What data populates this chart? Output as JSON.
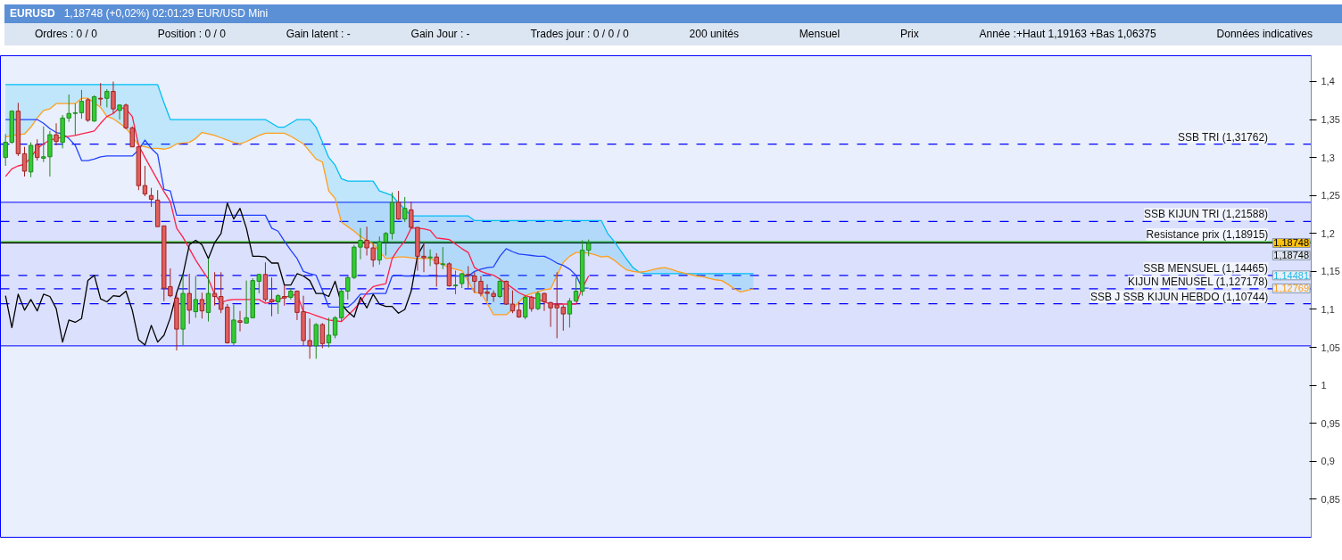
{
  "chart_data": {
    "type": "candlestick",
    "title": "EURUSD",
    "subtitle": "1,18748 (+0,02%) 02:01:29 EUR/USD Mini",
    "categories": [
      null,
      null,
      null,
      null,
      null,
      null,
      null,
      null,
      null,
      null,
      null,
      null,
      null,
      null,
      null,
      null,
      null,
      null,
      null,
      null,
      null,
      null,
      null,
      null,
      null,
      null,
      null,
      null,
      null,
      null,
      null,
      null,
      null,
      null,
      null,
      null,
      null,
      null,
      null,
      null,
      null,
      null,
      null,
      null,
      null,
      null,
      null,
      null,
      null,
      null,
      null,
      null,
      null,
      null,
      null,
      null,
      null,
      null,
      null,
      null,
      null,
      null,
      null,
      null,
      null,
      null,
      null,
      null,
      null,
      null,
      null,
      null,
      null,
      null,
      null,
      null,
      null,
      null,
      null,
      null,
      null,
      null,
      null,
      null,
      null,
      null,
      null,
      null,
      null,
      null,
      null,
      null,
      null,
      null,
      null,
      null,
      null,
      null,
      null,
      null,
      null,
      null,
      null,
      null,
      null,
      null,
      null,
      null,
      null,
      null,
      null,
      null,
      null,
      null,
      null,
      null,
      null,
      null,
      null,
      null,
      null,
      null,
      null,
      null,
      null,
      null,
      null,
      null,
      null,
      null,
      null,
      null,
      null,
      null,
      null,
      null,
      null,
      null,
      null,
      null,
      null,
      null,
      null,
      null,
      null,
      null,
      null,
      null,
      null,
      null,
      null,
      null,
      null,
      null,
      null,
      null,
      null,
      null,
      null,
      null,
      null,
      null,
      null,
      null,
      null,
      null,
      null,
      null,
      null,
      null,
      null,
      null,
      null,
      null,
      null,
      null,
      null,
      null,
      null,
      null,
      null,
      null,
      null,
      null,
      null,
      null,
      null,
      null,
      null,
      null,
      null,
      null,
      null,
      null,
      null,
      null,
      null,
      null,
      null,
      null
    ],
    "ohlc": [
      [
        1.3,
        1.331,
        1.289,
        1.32
      ],
      [
        1.32,
        1.362,
        1.318,
        1.361
      ],
      [
        1.361,
        1.372,
        1.302,
        1.305
      ],
      [
        1.305,
        1.314,
        1.275,
        1.282
      ],
      [
        1.281,
        1.32,
        1.274,
        1.316
      ],
      [
        1.317,
        1.324,
        1.296,
        1.3
      ],
      [
        1.299,
        1.341,
        1.294,
        1.301
      ],
      [
        1.301,
        1.335,
        1.275,
        1.33
      ],
      [
        1.33,
        1.345,
        1.316,
        1.321
      ],
      [
        1.32,
        1.356,
        1.312,
        1.352
      ],
      [
        1.352,
        1.383,
        1.347,
        1.358
      ],
      [
        1.358,
        1.371,
        1.329,
        1.359
      ],
      [
        1.359,
        1.389,
        1.351,
        1.374
      ],
      [
        1.376,
        1.378,
        1.347,
        1.349
      ],
      [
        1.348,
        1.382,
        1.347,
        1.38
      ],
      [
        1.378,
        1.398,
        1.368,
        1.377
      ],
      [
        1.378,
        1.39,
        1.366,
        1.387
      ],
      [
        1.387,
        1.4,
        1.358,
        1.364
      ],
      [
        1.362,
        1.37,
        1.35,
        1.369
      ],
      [
        1.369,
        1.371,
        1.337,
        1.339
      ],
      [
        1.339,
        1.341,
        1.314,
        1.314
      ],
      [
        1.314,
        1.315,
        1.257,
        1.263
      ],
      [
        1.263,
        1.289,
        1.249,
        1.252
      ],
      [
        1.25,
        1.26,
        1.235,
        1.245
      ],
      [
        1.244,
        1.257,
        1.209,
        1.209
      ],
      [
        1.21,
        1.21,
        1.111,
        1.128
      ],
      [
        1.13,
        1.154,
        1.116,
        1.118
      ],
      [
        1.115,
        1.12,
        1.046,
        1.074
      ],
      [
        1.074,
        1.146,
        1.053,
        1.121
      ],
      [
        1.121,
        1.147,
        1.081,
        1.099
      ],
      [
        1.097,
        1.144,
        1.089,
        1.113
      ],
      [
        1.113,
        1.122,
        1.088,
        1.098
      ],
      [
        1.096,
        1.167,
        1.084,
        1.121
      ],
      [
        1.121,
        1.149,
        1.105,
        1.117
      ],
      [
        1.117,
        1.149,
        1.095,
        1.1
      ],
      [
        1.103,
        1.107,
        1.055,
        1.056
      ],
      [
        1.056,
        1.106,
        1.053,
        1.086
      ],
      [
        1.085,
        1.098,
        1.071,
        1.083
      ],
      [
        1.082,
        1.138,
        1.082,
        1.089
      ],
      [
        1.089,
        1.141,
        1.089,
        1.138
      ],
      [
        1.137,
        1.147,
        1.121,
        1.146
      ],
      [
        1.146,
        1.162,
        1.11,
        1.113
      ],
      [
        1.113,
        1.142,
        1.091,
        1.11
      ],
      [
        1.11,
        1.12,
        1.094,
        1.118
      ],
      [
        1.117,
        1.132,
        1.105,
        1.115
      ],
      [
        1.116,
        1.128,
        1.113,
        1.124
      ],
      [
        1.124,
        1.125,
        1.086,
        1.096
      ],
      [
        1.097,
        1.118,
        1.052,
        1.059
      ],
      [
        1.059,
        1.088,
        1.035,
        1.052
      ],
      [
        1.052,
        1.082,
        1.035,
        1.08
      ],
      [
        1.08,
        1.082,
        1.049,
        1.055
      ],
      [
        1.056,
        1.089,
        1.05,
        1.066
      ],
      [
        1.066,
        1.091,
        1.062,
        1.089
      ],
      [
        1.089,
        1.127,
        1.084,
        1.124
      ],
      [
        1.124,
        1.144,
        1.113,
        1.142
      ],
      [
        1.142,
        1.185,
        1.14,
        1.182
      ],
      [
        1.182,
        1.207,
        1.166,
        1.191
      ],
      [
        1.191,
        1.209,
        1.171,
        1.181
      ],
      [
        1.181,
        1.186,
        1.156,
        1.165
      ],
      [
        1.165,
        1.196,
        1.159,
        1.189
      ],
      [
        1.189,
        1.202,
        1.171,
        1.2
      ],
      [
        1.2,
        1.254,
        1.192,
        1.241
      ],
      [
        1.241,
        1.256,
        1.218,
        1.219
      ],
      [
        1.219,
        1.248,
        1.215,
        1.233
      ],
      [
        1.231,
        1.242,
        1.206,
        1.208
      ],
      [
        1.208,
        1.208,
        1.151,
        1.17
      ],
      [
        1.17,
        1.188,
        1.149,
        1.168
      ],
      [
        1.168,
        1.179,
        1.157,
        1.169
      ],
      [
        1.169,
        1.174,
        1.13,
        1.16
      ],
      [
        1.159,
        1.182,
        1.153,
        1.16
      ],
      [
        1.16,
        1.162,
        1.13,
        1.131
      ],
      [
        1.131,
        1.151,
        1.12,
        1.132
      ],
      [
        1.134,
        1.148,
        1.128,
        1.147
      ],
      [
        1.146,
        1.157,
        1.128,
        1.145
      ],
      [
        1.144,
        1.149,
        1.122,
        1.137
      ],
      [
        1.137,
        1.144,
        1.117,
        1.121
      ],
      [
        1.123,
        1.133,
        1.111,
        1.121
      ],
      [
        1.121,
        1.125,
        1.11,
        1.117
      ],
      [
        1.117,
        1.141,
        1.115,
        1.137
      ],
      [
        1.137,
        1.138,
        1.106,
        1.107
      ],
      [
        1.107,
        1.125,
        1.095,
        1.098
      ],
      [
        1.099,
        1.11,
        1.089,
        1.09
      ],
      [
        1.09,
        1.118,
        1.087,
        1.116
      ],
      [
        1.116,
        1.118,
        1.097,
        1.101
      ],
      [
        1.101,
        1.124,
        1.099,
        1.121
      ],
      [
        1.121,
        1.122,
        1.098,
        1.11
      ],
      [
        1.109,
        1.11,
        1.077,
        1.102
      ],
      [
        1.106,
        1.149,
        1.062,
        1.102
      ],
      [
        1.103,
        1.106,
        1.072,
        1.094
      ],
      [
        1.094,
        1.115,
        1.076,
        1.111
      ],
      [
        1.111,
        1.142,
        1.11,
        1.124
      ],
      [
        1.124,
        1.191,
        1.118,
        1.178
      ],
      [
        1.178,
        1.192,
        1.17,
        1.187
      ],
      null,
      null,
      null,
      null,
      null,
      null,
      null,
      null,
      null,
      null,
      null,
      null,
      null,
      null,
      null,
      null,
      null,
      null,
      null,
      null,
      null,
      null,
      null,
      null,
      null,
      null,
      null,
      null,
      null,
      null,
      null,
      null,
      null,
      null,
      null,
      null,
      null,
      null,
      null,
      null,
      null,
      null,
      null,
      null,
      null,
      null,
      null,
      null,
      null,
      null,
      null,
      null,
      null,
      null,
      null,
      null,
      null,
      null,
      null,
      null,
      null,
      null,
      null,
      null,
      null,
      null,
      null,
      null,
      null,
      null,
      null,
      null,
      null,
      null,
      null,
      null,
      null,
      null,
      null,
      null,
      null,
      null,
      null,
      null,
      null,
      null,
      null,
      null,
      null,
      null,
      null,
      null,
      null,
      null,
      null,
      null,
      null,
      null,
      null,
      null,
      null,
      null,
      null,
      null,
      null,
      null,
      null
    ],
    "series": [
      {
        "type": "line",
        "color": "#00bff3",
        "values": [
          1.396,
          1.396,
          1.396,
          1.396,
          1.396,
          1.396,
          1.396,
          1.396,
          1.396,
          1.396,
          1.396,
          1.396,
          1.396,
          1.396,
          1.396,
          1.396,
          1.396,
          1.396,
          1.396,
          1.396,
          1.396,
          1.396,
          1.396,
          1.396,
          1.396,
          1.372,
          1.35,
          1.35,
          1.35,
          1.35,
          1.35,
          1.35,
          1.35,
          1.35,
          1.35,
          1.35,
          1.35,
          1.35,
          1.35,
          1.35,
          1.35,
          1.35,
          1.345,
          1.34,
          1.34,
          1.345,
          1.35,
          1.35,
          1.35,
          1.34,
          1.32,
          1.3,
          1.29,
          1.272,
          1.269,
          1.269,
          1.269,
          1.269,
          1.269,
          1.256,
          1.253,
          1.25,
          1.24,
          1.232,
          1.223,
          1.223,
          1.223,
          1.223,
          1.223,
          1.223,
          1.223,
          1.223,
          1.223,
          1.223,
          1.217,
          1.217,
          1.217,
          1.217,
          1.217,
          1.217,
          1.217,
          1.217,
          1.217,
          1.217,
          1.217,
          1.217,
          1.217,
          1.217,
          1.217,
          1.217,
          1.217,
          1.217,
          1.217,
          1.217,
          1.217,
          1.2,
          1.19,
          1.178,
          1.166,
          1.155,
          1.149,
          1.147,
          1.147,
          1.147,
          1.147,
          1.147,
          1.147,
          1.147,
          1.147,
          1.147,
          1.147,
          1.147,
          1.147,
          1.147,
          1.147,
          1.147,
          1.147,
          1.147,
          1.147,
          null,
          null,
          null,
          null,
          null,
          null,
          null,
          null,
          null,
          null,
          null,
          null,
          null,
          null,
          null,
          null,
          null,
          null,
          null,
          null,
          null,
          null,
          null,
          null,
          null,
          null,
          null,
          null,
          null,
          null,
          null,
          null,
          null,
          null,
          null,
          null,
          null,
          null,
          null,
          null,
          null,
          null,
          null,
          null,
          null,
          null,
          null,
          null,
          null,
          null,
          null,
          null,
          null,
          null,
          null,
          null,
          null,
          null,
          null,
          null,
          null,
          null,
          null,
          null,
          null,
          null,
          null,
          null,
          null,
          null,
          null,
          null,
          null,
          null,
          null,
          null,
          null,
          null,
          null,
          null,
          null
        ],
        "lower": [
          1.327,
          1.329,
          1.33,
          1.331,
          1.34,
          1.352,
          1.362,
          1.364,
          1.371,
          1.371,
          1.371,
          1.371,
          1.378,
          1.378,
          1.372,
          1.366,
          1.354,
          1.351,
          1.345,
          1.339,
          1.328,
          1.316,
          1.314,
          1.312,
          1.312,
          1.311,
          1.313,
          1.318,
          1.319,
          1.32,
          1.325,
          1.333,
          1.331,
          1.329,
          1.326,
          1.323,
          1.32,
          1.318,
          1.321,
          1.325,
          1.329,
          1.332,
          1.332,
          1.332,
          1.332,
          1.328,
          1.323,
          1.318,
          1.308,
          1.298,
          1.294,
          1.256,
          1.246,
          1.215,
          1.209,
          1.203,
          1.196,
          1.191,
          1.186,
          1.176,
          1.167,
          1.168,
          1.169,
          1.169,
          1.168,
          1.167,
          1.167,
          1.167,
          1.163,
          1.159,
          1.155,
          1.153,
          1.151,
          1.137,
          1.122,
          1.122,
          1.108,
          1.093,
          1.093,
          1.093,
          1.1,
          1.11,
          1.118,
          1.121,
          1.123,
          1.126,
          1.127,
          1.145,
          1.162,
          1.17,
          1.175,
          1.175,
          1.174,
          1.172,
          1.169,
          1.17,
          1.165,
          1.158,
          1.152,
          1.15,
          1.149,
          1.15,
          1.152,
          1.154,
          1.155,
          1.153,
          1.15,
          1.148,
          1.146,
          1.144,
          1.143,
          1.141,
          1.139,
          1.138,
          1.133,
          1.127,
          1.123,
          1.125,
          1.127,
          null,
          null,
          null,
          null,
          null,
          null,
          null,
          null,
          null,
          null,
          null,
          null,
          null,
          null,
          null,
          null,
          null,
          null,
          null,
          null,
          null,
          null,
          null,
          null,
          null,
          null,
          null,
          null,
          null,
          null,
          null,
          null,
          null,
          null,
          null,
          null,
          null,
          null,
          null,
          null,
          null,
          null,
          null,
          null,
          null,
          null,
          null,
          null,
          null,
          null,
          null,
          null,
          null,
          null,
          null,
          null,
          null,
          null,
          null,
          null,
          null,
          null,
          null,
          null,
          null,
          null,
          null,
          null,
          null,
          null,
          null,
          null,
          null,
          null,
          null,
          null,
          null,
          null,
          null,
          null,
          null
        ],
        "upper": [
          1.396,
          1.396,
          1.396,
          1.396,
          1.396,
          1.396,
          1.396,
          1.396,
          1.396,
          1.396,
          1.396,
          1.396,
          1.396,
          1.396,
          1.396,
          1.396,
          1.396,
          1.396,
          1.396,
          1.396,
          1.396,
          1.396,
          1.396,
          1.396,
          1.396,
          1.372,
          1.35,
          1.35,
          1.35,
          1.35,
          1.35,
          1.35,
          1.35,
          1.35,
          1.35,
          1.35,
          1.35,
          1.35,
          1.35,
          1.35,
          1.35,
          1.35,
          1.345,
          1.34,
          1.34,
          1.345,
          1.35,
          1.35,
          1.35,
          1.34,
          1.32,
          1.3,
          1.29,
          1.272,
          1.269,
          1.269,
          1.269,
          1.269,
          1.269,
          1.256,
          1.253,
          1.25,
          1.24,
          1.232,
          1.223,
          1.223,
          1.223,
          1.223,
          1.223,
          1.223,
          1.223,
          1.223,
          1.223,
          1.223,
          1.217,
          1.217,
          1.217,
          1.217,
          1.217,
          1.217,
          1.217,
          1.217,
          1.217,
          1.217,
          1.217,
          1.217,
          1.217,
          1.217,
          1.217,
          1.217,
          1.217,
          1.217,
          1.217,
          1.217,
          1.217,
          1.2,
          1.19,
          1.178,
          1.166,
          1.155,
          1.149,
          1.147,
          1.147,
          1.147,
          1.147,
          1.147,
          1.147,
          1.147,
          1.147,
          1.147,
          1.147,
          1.147,
          1.147,
          1.147,
          1.147,
          1.147,
          1.147,
          1.147,
          1.147,
          null,
          null,
          null,
          null,
          null,
          null,
          null,
          null,
          null,
          null,
          null,
          null,
          null,
          null,
          null,
          null,
          null,
          null,
          null,
          null,
          null,
          null,
          null,
          null,
          null,
          null,
          null,
          null,
          null,
          null,
          null,
          null,
          null,
          null,
          null,
          null,
          null,
          null,
          null,
          null,
          null,
          null,
          null,
          null,
          null,
          null,
          null,
          null,
          null,
          null,
          null,
          null,
          null,
          null,
          null,
          null,
          null,
          null,
          null,
          null,
          null,
          null,
          null,
          null,
          null,
          null,
          null,
          null,
          null,
          null,
          null,
          null,
          null,
          null,
          null,
          null,
          null,
          null,
          null,
          null,
          null
        ]
      },
      {
        "type": "line",
        "color": "#ff9f1c",
        "values": [
          1.327,
          1.329,
          1.33,
          1.331,
          1.34,
          1.352,
          1.362,
          1.364,
          1.371,
          1.371,
          1.371,
          1.371,
          1.378,
          1.378,
          1.372,
          1.366,
          1.354,
          1.351,
          1.345,
          1.339,
          1.328,
          1.316,
          1.314,
          1.312,
          1.312,
          1.311,
          1.313,
          1.318,
          1.319,
          1.32,
          1.325,
          1.333,
          1.331,
          1.329,
          1.326,
          1.323,
          1.32,
          1.318,
          1.321,
          1.325,
          1.329,
          1.332,
          1.332,
          1.332,
          1.332,
          1.328,
          1.323,
          1.318,
          1.308,
          1.298,
          1.294,
          1.256,
          1.246,
          1.215,
          1.209,
          1.203,
          1.196,
          1.191,
          1.186,
          1.176,
          1.167,
          1.168,
          1.169,
          1.169,
          1.168,
          1.167,
          1.167,
          1.167,
          1.163,
          1.159,
          1.155,
          1.153,
          1.151,
          1.137,
          1.122,
          1.122,
          1.108,
          1.093,
          1.093,
          1.093,
          1.1,
          1.11,
          1.118,
          1.121,
          1.123,
          1.126,
          1.127,
          1.145,
          1.162,
          1.17,
          1.175,
          1.175,
          1.174,
          1.172,
          1.169,
          1.17,
          1.165,
          1.158,
          1.152,
          1.15,
          1.149,
          1.15,
          1.152,
          1.154,
          1.155,
          1.153,
          1.15,
          1.148,
          1.146,
          1.144,
          1.143,
          1.141,
          1.139,
          1.138,
          1.133,
          1.127,
          1.123,
          1.125,
          1.127,
          null,
          null,
          null,
          null,
          null,
          null,
          null,
          null,
          null,
          null,
          null,
          null,
          null,
          null,
          null,
          null,
          null,
          null,
          null,
          null,
          null,
          null,
          null,
          null,
          null,
          null,
          null,
          null,
          null,
          null,
          null,
          null,
          null,
          null,
          null,
          null,
          null,
          null,
          null,
          null,
          null,
          null,
          null,
          null,
          null,
          null,
          null,
          null,
          null,
          null,
          null,
          null,
          null,
          null,
          null,
          null,
          null,
          null,
          null,
          null,
          null,
          null,
          null,
          null,
          null,
          null,
          null,
          null,
          null,
          null,
          null,
          null,
          null,
          null,
          null,
          null,
          null,
          null,
          null,
          null,
          null
        ]
      },
      {
        "type": "line",
        "color": "#2040ff",
        "values": [
          1.35,
          1.35,
          1.35,
          1.35,
          1.35,
          1.35,
          1.345,
          1.338,
          1.333,
          1.331,
          1.325,
          1.316,
          1.296,
          1.296,
          1.298,
          1.301,
          1.302,
          1.302,
          1.302,
          1.302,
          1.302,
          1.31,
          1.323,
          1.312,
          1.304,
          1.258,
          1.256,
          1.224,
          1.224,
          1.224,
          1.224,
          1.224,
          1.224,
          1.224,
          1.224,
          1.224,
          1.224,
          1.224,
          1.224,
          1.224,
          1.224,
          1.224,
          1.207,
          1.203,
          1.19,
          1.178,
          1.167,
          1.15,
          1.147,
          1.145,
          1.125,
          1.103,
          1.103,
          1.103,
          1.103,
          1.11,
          1.12,
          1.12,
          1.121,
          1.121,
          1.121,
          1.144,
          1.145,
          1.144,
          1.144,
          1.144,
          1.144,
          1.144,
          1.144,
          1.144,
          1.144,
          1.144,
          1.144,
          1.144,
          1.15,
          1.153,
          1.155,
          1.156,
          1.17,
          1.18,
          1.176,
          1.173,
          1.172,
          1.171,
          1.17,
          1.17,
          1.166,
          1.161,
          1.158,
          1.153,
          1.145,
          1.128,
          1.128,
          null,
          null,
          null,
          null,
          null,
          null,
          null,
          null,
          null,
          null,
          null,
          null,
          null,
          null,
          null,
          null,
          null,
          null,
          null,
          null,
          null,
          null,
          null,
          null,
          null,
          null,
          null,
          null,
          null,
          null,
          null,
          null,
          null,
          null,
          null,
          null,
          null,
          null,
          null,
          null,
          null,
          null,
          null,
          null,
          null,
          null,
          null,
          null,
          null,
          null,
          null,
          null,
          null,
          null,
          null,
          null,
          null,
          null,
          null,
          null,
          null,
          null,
          null,
          null,
          null,
          null,
          null,
          null,
          null,
          null,
          null,
          null,
          null,
          null,
          null,
          null,
          null,
          null,
          null,
          null,
          null,
          null,
          null,
          null,
          null,
          null,
          null,
          null,
          null,
          null,
          null,
          null,
          null,
          null,
          null,
          null,
          null,
          null,
          null,
          null,
          null,
          null,
          null,
          null,
          null,
          null,
          null
        ]
      },
      {
        "type": "line",
        "color": "#ff1f4b",
        "values": [
          1.275,
          1.285,
          1.289,
          1.291,
          1.3,
          1.312,
          1.318,
          1.323,
          1.325,
          1.327,
          1.328,
          1.329,
          1.331,
          1.333,
          1.335,
          1.345,
          1.354,
          1.358,
          1.366,
          1.364,
          1.354,
          1.316,
          1.3,
          1.285,
          1.27,
          1.255,
          1.242,
          1.207,
          1.195,
          1.18,
          1.165,
          1.152,
          1.14,
          1.12,
          1.109,
          1.112,
          1.113,
          1.113,
          1.113,
          1.113,
          1.113,
          1.108,
          1.11,
          1.113,
          1.116,
          1.118,
          1.12,
          1.097,
          1.095,
          1.092,
          1.089,
          1.086,
          1.085,
          1.084,
          1.092,
          1.1,
          1.11,
          1.122,
          1.13,
          1.132,
          1.134,
          1.167,
          1.18,
          1.19,
          1.207,
          1.207,
          1.206,
          1.204,
          1.194,
          1.193,
          1.192,
          1.186,
          1.18,
          1.175,
          1.155,
          1.15,
          1.147,
          1.145,
          1.14,
          1.134,
          1.128,
          1.122,
          1.118,
          1.116,
          1.114,
          1.11,
          1.107,
          1.107,
          1.107,
          1.107,
          1.107,
          1.128,
          1.144,
          null,
          null,
          null,
          null,
          null,
          null,
          null,
          null,
          null,
          null,
          null,
          null,
          null,
          null,
          null,
          null,
          null,
          null,
          null,
          null,
          null,
          null,
          null,
          null,
          null,
          null,
          null,
          null,
          null,
          null,
          null,
          null,
          null,
          null,
          null,
          null,
          null,
          null,
          null,
          null,
          null,
          null,
          null,
          null,
          null,
          null,
          null,
          null,
          null,
          null,
          null,
          null,
          null,
          null,
          null,
          null,
          null,
          null,
          null,
          null,
          null,
          null,
          null,
          null,
          null,
          null,
          null,
          null,
          null,
          null,
          null,
          null,
          null,
          null,
          null,
          null,
          null,
          null,
          null,
          null,
          null,
          null,
          null,
          null,
          null,
          null,
          null,
          null,
          null,
          null,
          null,
          null,
          null,
          null,
          null,
          null,
          null,
          null,
          null,
          null,
          null,
          null,
          null,
          null,
          null,
          null,
          null
        ]
      },
      {
        "type": "line",
        "color": "#000000",
        "values": [
          1.118,
          1.076,
          1.12,
          1.099,
          1.113,
          1.098,
          1.12,
          1.117,
          1.101,
          1.057,
          1.086,
          1.083,
          1.088,
          1.138,
          1.145,
          1.114,
          1.11,
          1.118,
          1.117,
          1.124,
          1.099,
          1.06,
          1.053,
          1.079,
          1.057,
          1.066,
          1.089,
          1.122,
          1.146,
          1.185,
          1.191,
          1.185,
          1.167,
          1.188,
          1.2,
          1.24,
          1.219,
          1.233,
          1.207,
          1.17,
          1.17,
          1.169,
          1.161,
          1.161,
          1.132,
          1.132,
          1.147,
          1.144,
          1.138,
          1.121,
          1.121,
          1.117,
          1.137,
          1.107,
          1.097,
          1.09,
          1.116,
          1.102,
          1.12,
          1.107,
          1.104,
          1.104,
          1.095,
          1.1,
          1.124,
          1.171,
          1.186,
          null,
          null,
          null,
          null,
          null,
          null,
          null,
          null,
          null,
          null,
          null,
          null,
          null,
          null,
          null,
          null,
          null,
          null,
          null,
          null,
          null,
          null,
          null,
          null,
          null,
          null,
          null,
          null,
          null,
          null,
          null,
          null,
          null,
          null,
          null,
          null,
          null,
          null,
          null,
          null,
          null,
          null,
          null,
          null,
          null,
          null,
          null,
          null,
          null,
          null,
          null,
          null,
          null,
          null,
          null,
          null,
          null,
          null,
          null,
          null,
          null,
          null,
          null,
          null,
          null,
          null,
          null,
          null,
          null,
          null,
          null,
          null,
          null,
          null,
          null,
          null,
          null,
          null,
          null,
          null,
          null,
          null,
          null,
          null,
          null,
          null,
          null,
          null,
          null,
          null,
          null,
          null,
          null,
          null,
          null,
          null,
          null,
          null,
          null,
          null,
          null,
          null,
          null,
          null,
          null,
          null,
          null,
          null,
          null,
          null,
          null,
          null,
          null,
          null,
          null,
          null,
          null,
          null,
          null,
          null,
          null,
          null,
          null,
          null,
          null,
          null,
          null,
          null,
          null,
          null,
          null,
          null,
          null
        ]
      }
    ],
    "ylim": [
      0.8,
      1.434
    ],
    "yticks": [
      {
        "value": 0.85,
        "label": "0,85"
      },
      {
        "value": 0.9,
        "label": "0,9"
      },
      {
        "value": 0.95,
        "label": "0,95"
      },
      1,
      {
        "value": 1.05,
        "label": "1,05"
      },
      {
        "value": 1.1,
        "label": "1,1"
      },
      {
        "value": 1.15,
        "label": "1,15"
      },
      {
        "value": 1.2,
        "label": "1,2"
      },
      {
        "value": 1.25,
        "label": "1,25"
      },
      {
        "value": 1.3,
        "label": "1,3"
      },
      {
        "value": 1.35,
        "label": "1,35"
      },
      {
        "value": 1.4,
        "label": "1,4"
      }
    ],
    "tick_labels": "y",
    "grid": false,
    "bands": [
      {
        "axis": "y",
        "from": 1.052,
        "to": 1.241,
        "color": "#0000ff"
      }
    ],
    "ref_lines": [
      {
        "axis": "y",
        "value": 1.31762,
        "label": "SSB TRI (1,31762)",
        "color": "#0000ff",
        "line_style": "dashed"
      },
      {
        "axis": "y",
        "value": 1.21588,
        "label": "SSB KIJUN TRI (1,21588)",
        "color": "#0000ff",
        "line_style": "dashed"
      },
      {
        "axis": "y",
        "value": 1.18915,
        "label": "Resistance prix (1,18915)",
        "color": "#22bb00",
        "line_style": "solid"
      },
      {
        "axis": "y",
        "value": 1.18748,
        "label": null,
        "color": "#000000",
        "line_style": "solid"
      },
      {
        "axis": "y",
        "value": 1.14465,
        "label": "SSB MENSUEL (1,14465)",
        "color": "#0000ff",
        "line_style": "dashed"
      },
      {
        "axis": "y",
        "value": 1.127178,
        "label": "KIJUN MENUSEL (1,127178)",
        "color": "#0000ff",
        "line_style": "dashed"
      },
      {
        "axis": "y",
        "value": 1.10744,
        "label": "SSB J SSB KIJUN HEBDO (1,10744)",
        "color": "#0000ff",
        "line_style": "dashed"
      }
    ],
    "annotations": [
      "Ordres : 0 / 0",
      "Position : 0 / 0",
      "Gain latent : -",
      "Gain Jour : -",
      "Trades jour : 0 / 0 / 0",
      "200 unités",
      "Mensuel",
      "Prix",
      "Année :+Haut 1,19163 +Bas 1,06375",
      "Données indicatives",
      {
        "text": "1,18748",
        "y": 1.18748
      },
      {
        "text": "1,18748",
        "y": 1.18748
      },
      {
        "text": "1,14481",
        "y": 1.14481
      },
      {
        "text": "1,12769",
        "y": 1.12769
      }
    ]
  }
}
